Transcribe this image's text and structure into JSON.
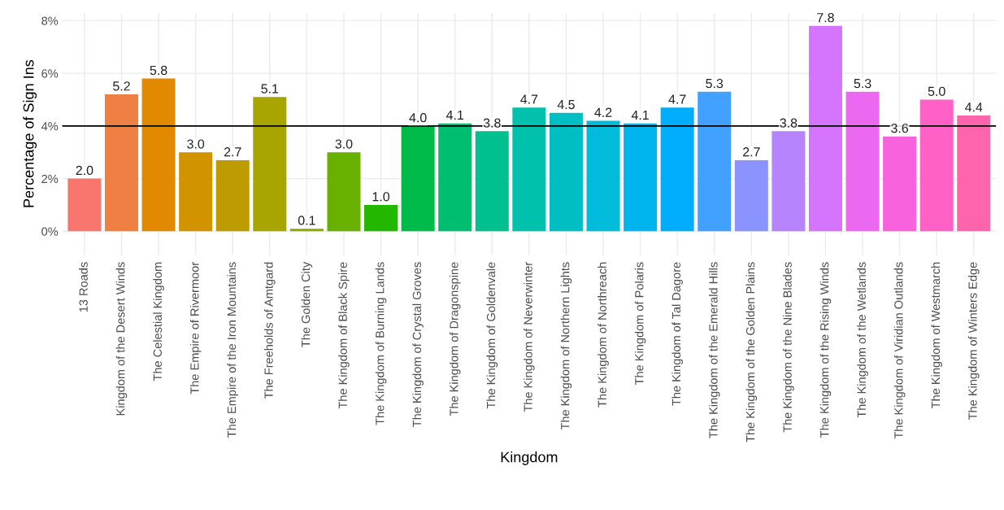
{
  "chart_data": {
    "type": "bar",
    "xlabel": "Kingdom",
    "ylabel": "Percentage of Sign Ins",
    "categories": [
      "13 Roads",
      "Kingdom of the Desert Winds",
      "The Celestial Kingdom",
      "The Empire of Rivermoor",
      "The Empire of the Iron Mountains",
      "The Freeholds of Amtgard",
      "The Golden City",
      "The Kingdom of Black Spire",
      "The Kingdom of Burning Lands",
      "The Kingdom of Crystal Groves",
      "The Kingdom of Dragonspine",
      "The Kingdom of Goldenvale",
      "The Kingdom of Neverwinter",
      "The Kingdom of Northern Lights",
      "The Kingdom of Northreach",
      "The Kingdom of Polaris",
      "The Kingdom of Tal Dagore",
      "The Kingdom of the Emerald Hills",
      "The Kingdom of the Golden Plains",
      "The Kingdom of the Nine Blades",
      "The Kingdom of the Rising Winds",
      "The Kingdom of the Wetlands",
      "The Kingdom of Viridian Outlands",
      "The Kingdom of Westmarch",
      "The Kingdom of Winters Edge"
    ],
    "values": [
      2.0,
      5.2,
      5.8,
      3.0,
      2.7,
      5.1,
      0.1,
      3.0,
      1.0,
      4.0,
      4.1,
      3.8,
      4.7,
      4.5,
      4.2,
      4.1,
      4.7,
      5.3,
      2.7,
      3.8,
      7.8,
      5.3,
      3.6,
      5.0,
      4.4
    ],
    "colors": [
      "#f8766d",
      "#ee8043",
      "#e18a00",
      "#d19300",
      "#be9c00",
      "#a8a400",
      "#8cab00",
      "#68b100",
      "#24b700",
      "#00bb49",
      "#00be70",
      "#00c090",
      "#00c1ab",
      "#00bfc4",
      "#00bbda",
      "#00b5ed",
      "#00acfc",
      "#42a0ff",
      "#8b93ff",
      "#b684ff",
      "#d575fe",
      "#eb69f0",
      "#f962dd",
      "#ff61c6",
      "#ff65ac"
    ],
    "value_labels": [
      "2.0",
      "5.2",
      "5.8",
      "3.0",
      "2.7",
      "5.1",
      "0.1",
      "3.0",
      "1.0",
      "4.0",
      "4.1",
      "3.8",
      "4.7",
      "4.5",
      "4.2",
      "4.1",
      "4.7",
      "5.3",
      "2.7",
      "3.8",
      "7.8",
      "5.3",
      "3.6",
      "5.0",
      "4.4"
    ],
    "ylim": [
      -0.9,
      8.3
    ],
    "yticks": [
      {
        "value": 0,
        "label": "0%"
      },
      {
        "value": 2,
        "label": "2%"
      },
      {
        "value": 4,
        "label": "4%"
      },
      {
        "value": 6,
        "label": "6%"
      },
      {
        "value": 8,
        "label": "8%"
      }
    ],
    "ref_lines": [
      {
        "axis": "y",
        "value": 4,
        "label": null,
        "color": "#000000"
      }
    ],
    "grid": true
  }
}
